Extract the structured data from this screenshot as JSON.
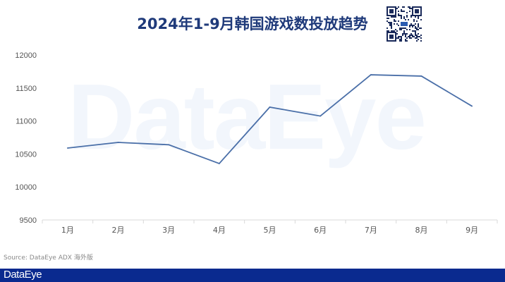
{
  "title": "2024年1-9月韩国游戏数投放趋势",
  "watermark": "DataEye",
  "source": "Source: DataEye ADX 海外版",
  "footer_brand": "DataEye",
  "colors": {
    "line": "#4a6fa8",
    "title": "#1f3a7a",
    "footer": "#0a2a8f"
  },
  "icons": {
    "qr": "qr-code-icon"
  },
  "chart_data": {
    "type": "line",
    "title": "2024年1-9月韩国游戏数投放趋势",
    "categories": [
      "1月",
      "2月",
      "3月",
      "4月",
      "5月",
      "6月",
      "7月",
      "8月",
      "9月"
    ],
    "values": [
      10590,
      10675,
      10640,
      10355,
      11210,
      11075,
      11700,
      11680,
      11225
    ],
    "ylim": [
      9500,
      12000
    ],
    "yticks": [
      "9500",
      "10000",
      "10500",
      "11000",
      "11500",
      "12000"
    ],
    "grid": false,
    "legend": "none"
  }
}
